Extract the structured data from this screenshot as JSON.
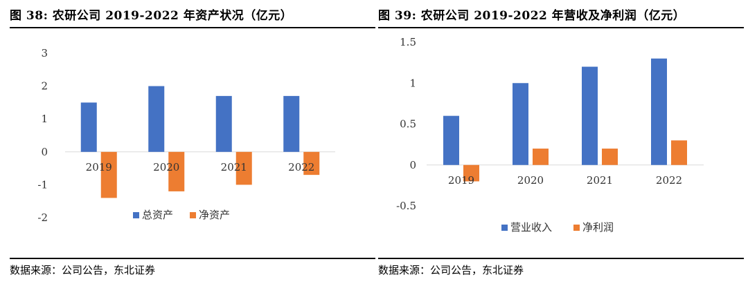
{
  "figures": [
    {
      "title": "图 38: 农研公司 2019-2022 年资产状况（亿元）",
      "source": "数据来源：公司公告，东北证券"
    },
    {
      "title": "图 39: 农研公司 2019-2022 年营收及净利润（亿元）",
      "source": "数据来源：公司公告，东北证券"
    }
  ],
  "colors": {
    "blue": "#4472C4",
    "orange": "#ED7D31"
  },
  "chart_data": [
    {
      "type": "bar",
      "categories": [
        "2019",
        "2020",
        "2021",
        "2022"
      ],
      "series": [
        {
          "name": "总资产",
          "values": [
            1.5,
            2.0,
            1.7,
            1.7
          ]
        },
        {
          "name": "净资产",
          "values": [
            -1.4,
            -1.2,
            -1.0,
            -0.7
          ]
        }
      ],
      "ylim": [
        -2,
        3
      ],
      "yticks": [
        "3",
        "2",
        "1",
        "0",
        "-1",
        "-2"
      ],
      "legend": "bottom",
      "grid": false
    },
    {
      "type": "bar",
      "categories": [
        "2019",
        "2020",
        "2021",
        "2022"
      ],
      "series": [
        {
          "name": "营业收入",
          "values": [
            0.6,
            1.0,
            1.2,
            1.3
          ]
        },
        {
          "name": "净利润",
          "values": [
            -0.2,
            0.2,
            0.2,
            0.3
          ]
        }
      ],
      "ylim": [
        -0.5,
        1.5
      ],
      "yticks": [
        "1.5",
        "1",
        "0.5",
        "0",
        "-0.5"
      ],
      "legend": "bottom",
      "grid": false
    }
  ]
}
